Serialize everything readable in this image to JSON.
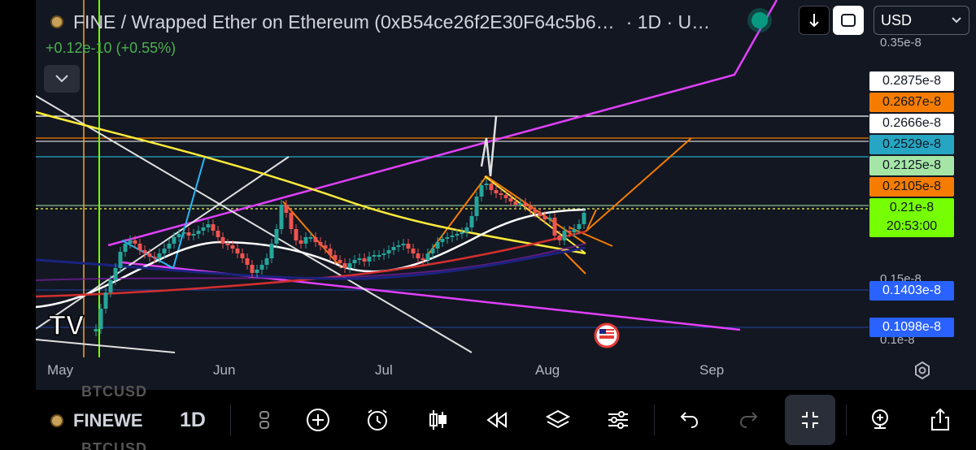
{
  "header": {
    "title": "FINE / Wrapped Ether on Ethereum (0xB54ce26f2E30F64c5b6…",
    "interval_suffix": "· 1D · U…",
    "change": "+0.12e-10 (+0.55%)",
    "currency": "USD",
    "icons": [
      "coin-icon",
      "chevron-down-icon",
      "live-dot",
      "arrow-down-icon",
      "square-icon",
      "chevron-down-icon"
    ]
  },
  "price_axis": {
    "labels": [
      {
        "text": "0.2875e-8",
        "bg": "#ffffff",
        "fg": "#131722"
      },
      {
        "text": "0.2687e-8",
        "bg": "#f57c00",
        "fg": "#131722"
      },
      {
        "text": "0.2666e-8",
        "bg": "#ffffff",
        "fg": "#131722"
      },
      {
        "text": "0.2529e-8",
        "bg": "#26a6c2",
        "fg": "#131722"
      },
      {
        "text": "0.2125e-8",
        "bg": "#a5e6a7",
        "fg": "#131722"
      },
      {
        "text": "0.2105e-8",
        "bg": "#f57c00",
        "fg": "#131722"
      },
      {
        "text": "0.21e-8",
        "bg": "#76ff03",
        "fg": "#131722"
      },
      {
        "text": "20:53:00",
        "bg": "#76ff03",
        "fg": "#131722"
      },
      {
        "text": "0.1403e-8",
        "bg": "#2962ff",
        "fg": "#ffffff"
      },
      {
        "text": "0.1098e-8",
        "bg": "#2962ff",
        "fg": "#ffffff"
      }
    ],
    "scale_top": "0.35e-8",
    "scale_mid": "0.15e-8",
    "scale_bottom": "0.1e-8"
  },
  "time_axis": [
    "May",
    "Jun",
    "Jul",
    "Aug",
    "Sep"
  ],
  "watermark": "TV",
  "ghost_symbol": "BTCUSD",
  "toolbar": {
    "symbol": "FINEWE",
    "interval": "1D",
    "icons": [
      "watchlist-icon",
      "add-circle-icon",
      "alarm-icon",
      "candles-icon",
      "rewind-icon",
      "layers-icon",
      "sliders-icon",
      "undo-icon",
      "redo-icon",
      "collapse-icon",
      "add-indicator-icon",
      "share-icon"
    ]
  },
  "colors": {
    "background": "#131722",
    "up": "#26a69a",
    "down": "#ef5350",
    "magenta": "#e040fb",
    "yellow": "#ffeb3b",
    "orange": "#f7931a"
  }
}
